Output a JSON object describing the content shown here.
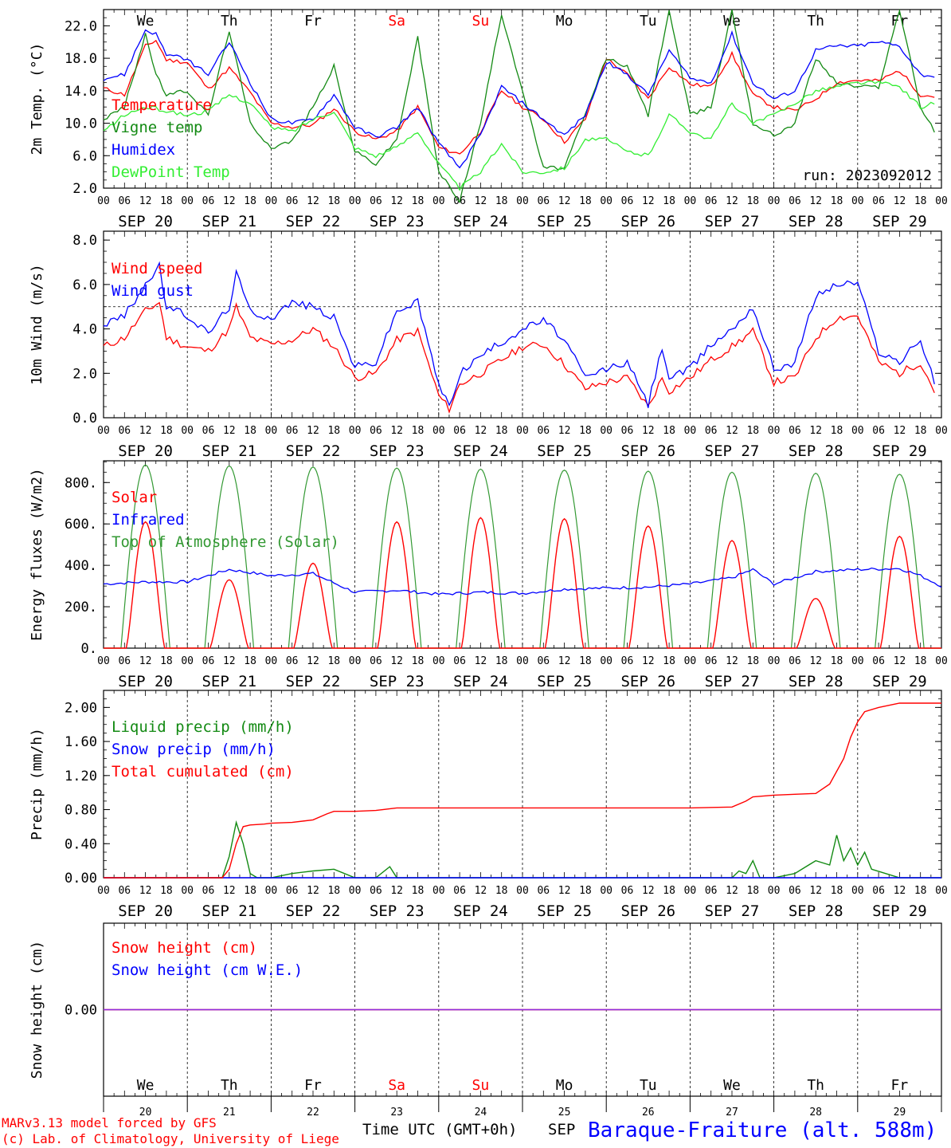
{
  "colors": {
    "red": "#ff0000",
    "darkgreen": "#138a13",
    "blue": "#0000ff",
    "lightgreen": "#33ee33",
    "green": "#339933",
    "purple": "#8a2be2",
    "axis": "#000000"
  },
  "day_names": [
    "We",
    "Th",
    "Fr",
    "Sa",
    "Su",
    "Mo",
    "Tu",
    "We",
    "Th",
    "Fr"
  ],
  "day_name_colors": [
    "#000000",
    "#000000",
    "#000000",
    "#ff0000",
    "#ff0000",
    "#000000",
    "#000000",
    "#000000",
    "#000000",
    "#000000"
  ],
  "date_labels": [
    "SEP 20",
    "SEP 21",
    "SEP 22",
    "SEP 23",
    "SEP 24",
    "SEP 25",
    "SEP 26",
    "SEP 27",
    "SEP 28",
    "SEP 29"
  ],
  "hour_labels": [
    "00",
    "06",
    "12",
    "18"
  ],
  "bottom_day_numbers": [
    "20",
    "21",
    "22",
    "23",
    "24",
    "25",
    "26",
    "27",
    "28",
    "29"
  ],
  "footer": {
    "model": "MARv3.13 model forced by GFS",
    "credit": "(c) Lab. of Climatology, University of Liege",
    "time_label": "Time UTC (GMT+0h)",
    "month": "SEP",
    "station": "Baraque-Fraiture (alt. 588m)"
  },
  "chart_data": [
    {
      "type": "line",
      "ylabel": "2m Temp. (°C)",
      "ylim": [
        2.0,
        24.0
      ],
      "yticks": [
        "2.0",
        "6.0",
        "10.0",
        "14.0",
        "18.0",
        "22.0"
      ],
      "ytick_values": [
        2,
        6,
        10,
        14,
        18,
        22
      ],
      "annotation": "run: 2023092012",
      "x_unit": "hours since 2023-09-20 00 UTC",
      "series": [
        {
          "name": "Temperature",
          "color": "#ff0000",
          "x": [
            0,
            6,
            12,
            15,
            18,
            24,
            30,
            36,
            42,
            48,
            54,
            60,
            66,
            72,
            78,
            84,
            90,
            96,
            102,
            108,
            114,
            120,
            126,
            132,
            138,
            144,
            150,
            156,
            162,
            168,
            174,
            180,
            186,
            192,
            198,
            204,
            210,
            216,
            222,
            228,
            234,
            238
          ],
          "values": [
            14.3,
            13.5,
            19.5,
            20.2,
            17.8,
            17.5,
            14.2,
            16.8,
            13.8,
            10.0,
            9.5,
            9.8,
            11.8,
            9.0,
            8.0,
            9.0,
            12.0,
            7.0,
            6.2,
            9.0,
            14.0,
            12.0,
            10.5,
            7.7,
            10.5,
            18.0,
            16.0,
            13.0,
            17.0,
            14.8,
            14.5,
            18.5,
            13.5,
            12.0,
            11.5,
            13.0,
            15.0,
            15.3,
            15.2,
            16.5,
            13.5,
            13.3
          ]
        },
        {
          "name": "Vigne temp",
          "color": "#138a13",
          "x": [
            0,
            6,
            12,
            15,
            18,
            24,
            30,
            36,
            42,
            48,
            54,
            60,
            66,
            72,
            78,
            84,
            90,
            96,
            102,
            108,
            114,
            120,
            126,
            132,
            138,
            144,
            150,
            156,
            162,
            168,
            174,
            180,
            186,
            192,
            198,
            204,
            210,
            216,
            222,
            228,
            234,
            238
          ],
          "values": [
            10.5,
            12.0,
            21.0,
            16.0,
            13.5,
            14.0,
            11.0,
            21.5,
            10.0,
            7.0,
            7.8,
            12.0,
            17.0,
            6.5,
            5.0,
            8.0,
            20.5,
            4.0,
            0.5,
            10.0,
            23.5,
            14.0,
            4.5,
            4.5,
            11.0,
            18.0,
            17.0,
            11.0,
            24.0,
            11.0,
            12.0,
            24.0,
            10.0,
            8.5,
            10.0,
            18.0,
            15.0,
            14.5,
            14.5,
            24.0,
            12.0,
            9.0
          ]
        },
        {
          "name": "Humidex",
          "color": "#0000ff",
          "x": [
            0,
            6,
            12,
            15,
            18,
            24,
            30,
            36,
            42,
            48,
            54,
            60,
            66,
            72,
            78,
            84,
            90,
            96,
            102,
            108,
            114,
            120,
            126,
            132,
            138,
            144,
            150,
            156,
            162,
            168,
            174,
            180,
            186,
            192,
            198,
            204,
            210,
            216,
            222,
            228,
            234,
            238
          ],
          "values": [
            15.5,
            16.0,
            21.5,
            21.0,
            18.5,
            17.8,
            16.0,
            20.0,
            15.0,
            10.5,
            10.0,
            10.5,
            13.5,
            9.5,
            8.3,
            9.5,
            12.0,
            7.5,
            4.5,
            8.5,
            14.5,
            12.5,
            10.5,
            8.5,
            11.0,
            17.5,
            16.0,
            13.5,
            19.0,
            15.5,
            15.0,
            21.0,
            15.0,
            13.0,
            14.0,
            19.0,
            19.5,
            19.5,
            20.0,
            19.5,
            16.0,
            15.8
          ]
        },
        {
          "name": "DewPoint Temp",
          "color": "#33ee33",
          "x": [
            0,
            6,
            12,
            15,
            18,
            24,
            30,
            36,
            42,
            48,
            54,
            60,
            66,
            72,
            78,
            84,
            90,
            96,
            102,
            108,
            114,
            120,
            126,
            132,
            138,
            144,
            150,
            156,
            162,
            168,
            174,
            180,
            186,
            192,
            198,
            204,
            210,
            216,
            222,
            228,
            234,
            238
          ],
          "values": [
            9.0,
            11.0,
            12.0,
            11.8,
            11.5,
            11.0,
            11.5,
            13.5,
            12.5,
            9.5,
            9.0,
            10.5,
            11.5,
            7.0,
            6.0,
            7.0,
            9.0,
            5.0,
            2.0,
            4.0,
            7.5,
            4.0,
            4.0,
            4.5,
            8.0,
            8.0,
            6.5,
            6.0,
            11.0,
            9.0,
            8.0,
            12.5,
            10.0,
            11.0,
            12.5,
            14.0,
            14.5,
            15.0,
            15.0,
            14.5,
            12.0,
            12.5
          ]
        }
      ]
    },
    {
      "type": "line",
      "ylabel": "10m Wind (m/s)",
      "ylim": [
        0.0,
        8.0
      ],
      "yticks": [
        "0.0",
        "2.0",
        "4.0",
        "6.0",
        "8.0"
      ],
      "ytick_values": [
        0,
        2,
        4,
        6,
        8
      ],
      "reference_line": 5.0,
      "x_unit": "hours since 2023-09-20 00 UTC",
      "series": [
        {
          "name": "Wind speed",
          "color": "#ff0000",
          "x": [
            0,
            6,
            12,
            16,
            18,
            24,
            30,
            36,
            38,
            42,
            48,
            54,
            60,
            66,
            72,
            78,
            84,
            90,
            96,
            99,
            102,
            108,
            114,
            120,
            126,
            132,
            138,
            144,
            150,
            156,
            160,
            162,
            168,
            174,
            180,
            186,
            192,
            198,
            204,
            210,
            216,
            222,
            228,
            234,
            238
          ],
          "values": [
            3.2,
            3.6,
            4.8,
            5.2,
            3.6,
            3.2,
            3.0,
            4.0,
            5.0,
            3.6,
            3.3,
            3.5,
            4.0,
            3.2,
            1.8,
            2.0,
            3.5,
            3.9,
            1.0,
            0.4,
            1.5,
            2.0,
            2.6,
            3.2,
            3.3,
            2.4,
            1.3,
            1.6,
            1.8,
            0.5,
            1.8,
            1.2,
            1.8,
            2.6,
            3.2,
            3.9,
            1.6,
            1.8,
            3.6,
            4.5,
            4.6,
            2.5,
            2.0,
            2.5,
            1.2
          ]
        },
        {
          "name": "Wind gust",
          "color": "#0000ff",
          "x": [
            0,
            6,
            12,
            16,
            18,
            24,
            30,
            36,
            38,
            42,
            48,
            54,
            60,
            66,
            72,
            78,
            84,
            90,
            96,
            99,
            102,
            108,
            114,
            120,
            126,
            132,
            138,
            144,
            150,
            156,
            160,
            162,
            168,
            174,
            180,
            186,
            192,
            198,
            204,
            210,
            216,
            222,
            228,
            234,
            238
          ],
          "values": [
            4.2,
            4.6,
            6.0,
            6.8,
            5.0,
            4.6,
            3.8,
            5.0,
            6.5,
            4.8,
            4.5,
            5.2,
            5.0,
            4.5,
            2.3,
            2.5,
            4.8,
            5.2,
            1.5,
            0.5,
            2.0,
            2.8,
            3.4,
            4.0,
            4.4,
            3.5,
            1.8,
            2.2,
            2.5,
            0.6,
            3.2,
            1.8,
            2.2,
            3.3,
            4.0,
            5.0,
            2.2,
            2.5,
            5.5,
            6.0,
            6.1,
            3.0,
            2.5,
            3.5,
            1.6
          ]
        }
      ]
    },
    {
      "type": "line",
      "ylabel": "Energy fluxes (W/m2)",
      "ylim": [
        0,
        900
      ],
      "yticks": [
        "0.",
        "200.",
        "400.",
        "600.",
        "800."
      ],
      "ytick_values": [
        0,
        200,
        400,
        600,
        800
      ],
      "x_unit": "hours since 2023-09-20 00 UTC",
      "daily_peaks": {
        "Top of Atmosphere (Solar)": [
          885,
          880,
          875,
          870,
          865,
          860,
          855,
          850,
          845,
          840
        ],
        "Solar": [
          610,
          330,
          410,
          610,
          630,
          625,
          590,
          520,
          240,
          540
        ]
      },
      "series": [
        {
          "name": "Solar",
          "color": "#ff0000"
        },
        {
          "name": "Infrared",
          "color": "#0000ff",
          "x": [
            0,
            12,
            24,
            36,
            48,
            60,
            72,
            84,
            96,
            108,
            120,
            132,
            144,
            156,
            168,
            180,
            186,
            192,
            204,
            216,
            228,
            234,
            240
          ],
          "values": [
            310,
            320,
            320,
            380,
            350,
            360,
            270,
            280,
            260,
            270,
            265,
            285,
            290,
            295,
            310,
            340,
            380,
            310,
            370,
            380,
            385,
            350,
            300
          ]
        },
        {
          "name": "Top of Atmosphere (Solar)",
          "color": "#339933"
        }
      ]
    },
    {
      "type": "line",
      "ylabel": "Precip (mm/h)",
      "ylim": [
        0.0,
        2.2
      ],
      "yticks": [
        "0.00",
        "0.40",
        "0.80",
        "1.20",
        "1.60",
        "2.00"
      ],
      "ytick_values": [
        0,
        0.4,
        0.8,
        1.2,
        1.6,
        2.0
      ],
      "x_unit": "hours since 2023-09-20 00 UTC",
      "series": [
        {
          "name": "Liquid precip (mm/h)",
          "color": "#138a13",
          "x": [
            0,
            34,
            36,
            38,
            40,
            42,
            44,
            46,
            48,
            54,
            60,
            66,
            72,
            78,
            82,
            84,
            90,
            96,
            180,
            182,
            184,
            186,
            188,
            190,
            192,
            198,
            204,
            208,
            210,
            212,
            214,
            216,
            218,
            220,
            224,
            228,
            240
          ],
          "values": [
            0,
            0,
            0.25,
            0.65,
            0.4,
            0.05,
            0,
            0,
            0,
            0.05,
            0.08,
            0.1,
            0,
            0,
            0.13,
            0,
            0,
            0,
            0,
            0.08,
            0.05,
            0.2,
            0,
            0,
            0,
            0.05,
            0.2,
            0.15,
            0.5,
            0.2,
            0.35,
            0.15,
            0.3,
            0.1,
            0.05,
            0,
            0
          ]
        },
        {
          "name": "Snow precip (mm/h)",
          "color": "#0000ff",
          "x": [
            0,
            240
          ],
          "values": [
            0,
            0
          ]
        },
        {
          "name": "Total cumulated (cm)",
          "color": "#ff0000",
          "x": [
            0,
            34,
            36,
            38,
            40,
            42,
            46,
            48,
            54,
            60,
            64,
            66,
            72,
            78,
            84,
            96,
            108,
            120,
            132,
            144,
            156,
            168,
            180,
            184,
            186,
            192,
            198,
            204,
            208,
            212,
            214,
            216,
            218,
            222,
            228,
            240
          ],
          "values": [
            0,
            0,
            0.1,
            0.4,
            0.6,
            0.62,
            0.63,
            0.64,
            0.65,
            0.68,
            0.75,
            0.78,
            0.78,
            0.79,
            0.82,
            0.82,
            0.82,
            0.82,
            0.82,
            0.82,
            0.82,
            0.82,
            0.83,
            0.9,
            0.95,
            0.97,
            0.98,
            0.99,
            1.1,
            1.4,
            1.65,
            1.83,
            1.95,
            2.0,
            2.05,
            2.05
          ]
        }
      ]
    },
    {
      "type": "line",
      "ylabel": "Snow height (cm)",
      "yticks": [
        "0.00"
      ],
      "ytick_values": [
        0
      ],
      "x_unit": "hours since 2023-09-20 00 UTC",
      "series": [
        {
          "name": "Snow height (cm)",
          "color": "#ff0000",
          "x": [
            0,
            240
          ],
          "values": [
            0,
            0
          ]
        },
        {
          "name": "Snow height (cm W.E.)",
          "color": "#0000ff",
          "x": [
            0,
            240
          ],
          "values": [
            0,
            0
          ]
        }
      ]
    }
  ]
}
